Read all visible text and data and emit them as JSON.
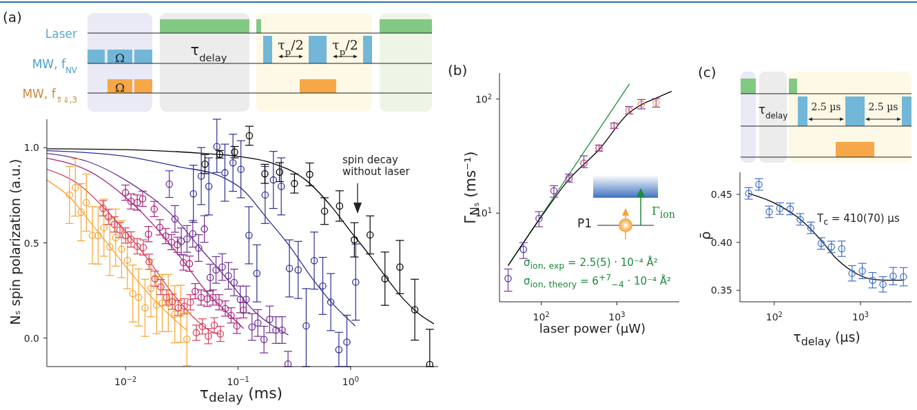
{
  "chart_data": [
    {
      "type": "other",
      "title": "(a)",
      "annotations": [
        "Laser",
        "MW, f$_{NV}$",
        "MW, f$_{⇑⇓,3}$",
        "Ω",
        "Ω",
        "τ$_{delay}$",
        "τ$_{p}$/2",
        "τ$_{p}$/2"
      ]
    },
    {
      "type": "scatter",
      "xlabel": "τ$_{delay}$ (ms)",
      "ylabel": "Nₛ spin polarization (a.u.)",
      "log": "x",
      "marker": "circle",
      "xlim": [
        0.002,
        6
      ],
      "ylim": [
        -0.15,
        1.15
      ],
      "xticks": [
        {
          "value": 0.01,
          "label": "10$^{−2}$"
        },
        {
          "value": 0.1,
          "label": "10$^{−1}$"
        },
        {
          "value": 1,
          "label": "10$^{0}$"
        }
      ],
      "yticks": [
        {
          "value": 0,
          "label": "0.0"
        },
        {
          "value": 0.5,
          "label": "0.5"
        },
        {
          "value": 1,
          "label": "1.0"
        }
      ],
      "annotations": [
        "spin decay without laser"
      ],
      "series": [
        {
          "color": "#f5a330",
          "x": [
            0.00318,
            0.00358,
            0.00403,
            0.00449,
            0.00508,
            0.00571,
            0.00643,
            0.00726,
            0.00817,
            0.00923,
            0.0104,
            0.0116,
            0.0131,
            0.0149,
            0.0168,
            0.0189,
            0.0212,
            0.024,
            0.0274,
            0.031,
            0.0351
          ],
          "values": [
            0.752,
            0.791,
            0.661,
            0.712,
            0.54,
            0.539,
            0.58,
            0.479,
            0.528,
            0.467,
            0.409,
            0.234,
            0.213,
            0.159,
            0.262,
            0.173,
            0.184,
            0.184,
            0.125,
            0.128,
            -0.006
          ],
          "errors": [
            0.15,
            0.15,
            0.15,
            0.15,
            0.15,
            0.15,
            0.15,
            0.15,
            0.15,
            0.15,
            0.15,
            0.15,
            0.15,
            0.15,
            0.15,
            0.15,
            0.15,
            0.15,
            0.15,
            0.15,
            0.14
          ]
        },
        {
          "color": "#d6405a",
          "x": [
            0.00631,
            0.00706,
            0.00798,
            0.00893,
            0.01,
            0.0112,
            0.0127,
            0.0144,
            0.0162,
            0.0183,
            0.0206,
            0.0232,
            0.0261,
            0.0294,
            0.0332,
            0.0377,
            0.0426,
            0.0482,
            0.0545,
            0.0615,
            0.0696
          ],
          "values": [
            0.682,
            0.637,
            0.597,
            0.568,
            0.539,
            0.518,
            0.482,
            0.476,
            0.401,
            0.312,
            0.268,
            0.213,
            0.191,
            0.159,
            0.167,
            0.188,
            0.028,
            0.061,
            0.01,
            0.067,
            0.022
          ],
          "errors": [
            0.04,
            0.04,
            0.04,
            0.04,
            0.04,
            0.04,
            0.04,
            0.04,
            0.04,
            0.04,
            0.04,
            0.04,
            0.04,
            0.04,
            0.04,
            0.04,
            0.04,
            0.04,
            0.04,
            0.04,
            0.04
          ]
        },
        {
          "color": "#a8237e",
          "x": [
            0.01,
            0.0112,
            0.0127,
            0.0142,
            0.016,
            0.018,
            0.0202,
            0.0228,
            0.0256,
            0.0289,
            0.0327,
            0.037,
            0.0416,
            0.047,
            0.0532,
            0.0598,
            0.0678,
            0.077,
            0.0867,
            0.0977,
            0.1116
          ],
          "values": [
            0.764,
            0.718,
            0.712,
            0.732,
            0.546,
            0.678,
            0.582,
            0.536,
            0.504,
            0.49,
            0.397,
            0.391,
            0.246,
            0.213,
            0.206,
            0.213,
            0.188,
            0.155,
            0.119,
            0.064,
            0.146
          ],
          "errors": [
            0.04,
            0.04,
            0.04,
            0.04,
            0.04,
            0.04,
            0.04,
            0.04,
            0.04,
            0.04,
            0.04,
            0.04,
            0.04,
            0.04,
            0.04,
            0.04,
            0.04,
            0.04,
            0.04,
            0.04,
            0.04
          ]
        },
        {
          "color": "#6a2c91",
          "x": [
            0.0245,
            0.0275,
            0.0313,
            0.0352,
            0.0396,
            0.0447,
            0.0502,
            0.0566,
            0.0637,
            0.0723,
            0.0821,
            0.0923,
            0.1047,
            0.118,
            0.133,
            0.15,
            0.17,
            0.191,
            0.217,
            0.246,
            0.278
          ],
          "values": [
            0.809,
            0.626,
            0.508,
            0.521,
            0.548,
            0.473,
            0.573,
            0.318,
            0.358,
            0.373,
            0.327,
            0.292,
            0.203,
            0.203,
            0.058,
            0.079,
            -0.008,
            0.098,
            0.042,
            0.042,
            -0.136
          ],
          "errors": [
            0.07,
            0.07,
            0.07,
            0.07,
            0.07,
            0.07,
            0.07,
            0.07,
            0.07,
            0.07,
            0.07,
            0.07,
            0.07,
            0.07,
            0.07,
            0.07,
            0.07,
            0.07,
            0.07,
            0.07,
            [
              -0.15,
              -0.07
            ]
          ]
        },
        {
          "color": "#2b2f8f",
          "x": [
            0.0401,
            0.0471,
            0.055,
            0.0648,
            0.0764,
            0.0901,
            0.106,
            0.125,
            0.147,
            0.174,
            0.206,
            0.242,
            0.286,
            0.342,
            0.403,
            0.475,
            0.566,
            0.667,
            0.787,
            0.927,
            1.11
          ],
          "values": [
            0.758,
            0.851,
            0.797,
            1.006,
            0.869,
            0.921,
            0.887,
            0.54,
            0.34,
            0.752,
            0.831,
            0.797,
            0.366,
            0.358,
            0.064,
            0.407,
            0.274,
            0.189,
            -0.061,
            -0.021,
            0.294
          ],
          "errors": [
            0.15,
            0.15,
            0.15,
            [
              0.87,
              1.15
            ],
            0.15,
            0.15,
            0.15,
            0.15,
            0.15,
            0.15,
            0.15,
            0.15,
            0.15,
            0.15,
            [
              -0.15,
              0.26
            ],
            0.15,
            0.15,
            0.15,
            [
              -0.15,
              0.03
            ],
            [
              -0.15,
              0.12
            ],
            0.2
          ]
        },
        {
          "color": "#000000",
          "x": [
            0.0508,
            0.0686,
            0.0931,
            0.126,
            0.173,
            0.234,
            0.317,
            0.433,
            0.587,
            0.798,
            1.08,
            1.49,
            2.02,
            2.74,
            3.72,
            5.05
          ],
          "values": [
            0.914,
            0.966,
            0.977,
            1.063,
            0.863,
            0.872,
            0.812,
            0.86,
            0.667,
            0.694,
            0.516,
            0.542,
            0.312,
            0.373,
            0.149,
            -0.139
          ],
          "errors": [
            0.05,
            0.02,
            0.03,
            0.05,
            0.05,
            0.05,
            0.05,
            0.06,
            0.07,
            0.08,
            0.09,
            0.1,
            0.14,
            0.14,
            0.16,
            [
              -0.15,
              0.046
            ]
          ]
        },
        {
          "type": "line",
          "marker": "none",
          "color": "#f5a330",
          "x": [
            0.002,
            0.0032,
            0.005,
            0.008,
            0.0116,
            0.018,
            0.027,
            0.035
          ],
          "values": [
            0.83,
            0.74,
            0.6,
            0.45,
            0.33,
            0.2,
            0.1,
            0.04
          ]
        },
        {
          "type": "line",
          "marker": "none",
          "color": "#d6405a",
          "x": [
            0.002,
            0.004,
            0.0063,
            0.01,
            0.016,
            0.025,
            0.04,
            0.06,
            0.07
          ],
          "values": [
            0.887,
            0.8,
            0.69,
            0.56,
            0.41,
            0.25,
            0.11,
            0.03,
            0.02
          ]
        },
        {
          "type": "line",
          "marker": "none",
          "color": "#a8237e",
          "x": [
            0.002,
            0.005,
            0.01,
            0.02,
            0.033,
            0.053,
            0.078,
            0.112
          ],
          "values": [
            0.945,
            0.87,
            0.74,
            0.56,
            0.4,
            0.24,
            0.14,
            0.05
          ]
        },
        {
          "type": "line",
          "marker": "none",
          "color": "#6a2c91",
          "x": [
            0.002,
            0.005,
            0.01,
            0.0275,
            0.045,
            0.08,
            0.14,
            0.28
          ],
          "values": [
            0.97,
            0.92,
            0.83,
            0.63,
            0.48,
            0.31,
            0.14,
            0.016
          ]
        },
        {
          "type": "line",
          "marker": "none",
          "color": "#2b2f8f",
          "x": [
            0.002,
            0.01,
            0.03,
            0.07,
            0.11,
            0.18,
            0.29,
            0.46,
            0.67,
            1.1
          ],
          "values": [
            0.985,
            0.955,
            0.9,
            0.85,
            0.78,
            0.63,
            0.48,
            0.31,
            0.19,
            0.064
          ]
        },
        {
          "type": "line",
          "marker": "none",
          "color": "#000000",
          "x": [
            0.002,
            0.01,
            0.05,
            0.1,
            0.2,
            0.4,
            0.7,
            1,
            1.5,
            2,
            3,
            4,
            5.5
          ],
          "values": [
            0.995,
            0.99,
            0.97,
            0.955,
            0.92,
            0.83,
            0.68,
            0.56,
            0.43,
            0.33,
            0.2,
            0.13,
            0.075
          ]
        }
      ]
    },
    {
      "type": "scatter",
      "title": "(b)",
      "xlabel": "laser power (µW)",
      "ylabel": "Γ$_{Nₛ}$ (ms⁻¹)",
      "log": "xy",
      "marker": "circle",
      "xlim": [
        28,
        6700
      ],
      "ylim": [
        1.67,
        169
      ],
      "xticks": [
        {
          "value": 100,
          "label": "10$^{2}$"
        },
        {
          "value": 1000,
          "label": "10$^{3}$"
        }
      ],
      "yticks": [
        {
          "value": 10,
          "label": "10$^{1}$"
        },
        {
          "value": 100,
          "label": "10$^{2}$"
        }
      ],
      "annotations": [
        "P1",
        "Γ$_{ion}$",
        "σ$_{ion, exp}$ = 2.5(5) · 10⁻⁴ Å²",
        "σ$_{ion, theory}$ = 6$^{+7}$$_{−4}$ · 10⁻⁴ Å²"
      ],
      "series": [
        {
          "color": "#7a3aa0",
          "colors": [
            "#3a3a9a",
            "#4a3aa0",
            "#6a3aa8",
            "#8a3aa8",
            "#a8358f",
            "#c03a7a",
            "#c8356a",
            "#d84a5a",
            "#e8705a",
            "#f08a50",
            "#f5a340"
          ],
          "x": [
            36.4,
            58.1,
            93.3,
            147,
            233,
            366,
            581,
            920,
            1450,
            2110,
            3300
          ],
          "values": [
            2.67,
            4.81,
            9,
            15.7,
            20.3,
            27.4,
            37.2,
            58.5,
            80,
            90,
            92.5
          ],
          "errors": [
            [
              2.07,
              3.24
            ],
            [
              4,
              5.51
            ],
            [
              7.6,
              10.3
            ],
            [
              13.8,
              17.4
            ],
            [
              18.7,
              22
            ],
            [
              25,
              31.8
            ],
            [
              34.9,
              39.5
            ],
            [
              55.3,
              61.6
            ],
            [
              74,
              86
            ],
            [
              82,
              99
            ],
            [
              85,
              101
            ]
          ]
        },
        {
          "type": "line",
          "marker": "none",
          "color": "#1e8a3c",
          "x": [
            36.4,
            1470
          ],
          "values": [
            3.47,
            136
          ]
        },
        {
          "type": "line",
          "marker": "none",
          "color": "#000000",
          "x": [
            36.4,
            100,
            233,
            581,
            1450,
            2100,
            3300,
            5300
          ],
          "values": [
            3.47,
            9.3,
            19.8,
            36.1,
            75.7,
            89,
            102,
            117
          ]
        }
      ]
    },
    {
      "type": "other",
      "title": "(c)",
      "annotations": [
        "τ$_{delay}$",
        "2.5 µs",
        "2.5 µs"
      ]
    },
    {
      "type": "scatter",
      "xlabel": "τ$_{delay}$ (µs)",
      "ylabel": "ρ̄",
      "log": "x",
      "marker": "circle",
      "xlim": [
        40,
        3900
      ],
      "ylim": [
        0.338,
        0.473
      ],
      "xticks": [
        {
          "value": 100,
          "label": "10$^{2}$"
        },
        {
          "value": 1000,
          "label": "10$^{3}$"
        }
      ],
      "yticks": [
        {
          "value": 0.35,
          "label": "0.35"
        },
        {
          "value": 0.4,
          "label": "0.40"
        },
        {
          "value": 0.45,
          "label": "0.45"
        }
      ],
      "annotations": [
        "T$_{c}$ = 410(70) µs"
      ],
      "series": [
        {
          "color": "#3f6fc8",
          "x": [
            50.5,
            66.4,
            87.4,
            116,
            153,
            200,
            266,
            350,
            460,
            606,
            798,
            1050,
            1380,
            1820,
            2390,
            3150
          ],
          "values": [
            0.451,
            0.4603,
            0.4318,
            0.4352,
            0.4347,
            0.4239,
            0.4151,
            0.3988,
            0.3952,
            0.3933,
            0.3677,
            0.3701,
            0.3605,
            0.3562,
            0.3648,
            0.3641
          ],
          "errors": [
            0.006,
            0.006,
            0.006,
            0.006,
            0.006,
            0.006,
            0.006,
            0.006,
            0.006,
            0.008,
            0.008,
            0.008,
            0.008,
            0.008,
            0.009,
            0.0095
          ]
        },
        {
          "type": "line",
          "marker": "none",
          "color": "#000000",
          "x": [
            50,
            100,
            200,
            350,
            500,
            800,
            1300,
            2000,
            3150
          ],
          "values": [
            0.451,
            0.441,
            0.424,
            0.402,
            0.385,
            0.37,
            0.362,
            0.3605,
            0.3605
          ]
        }
      ]
    }
  ]
}
